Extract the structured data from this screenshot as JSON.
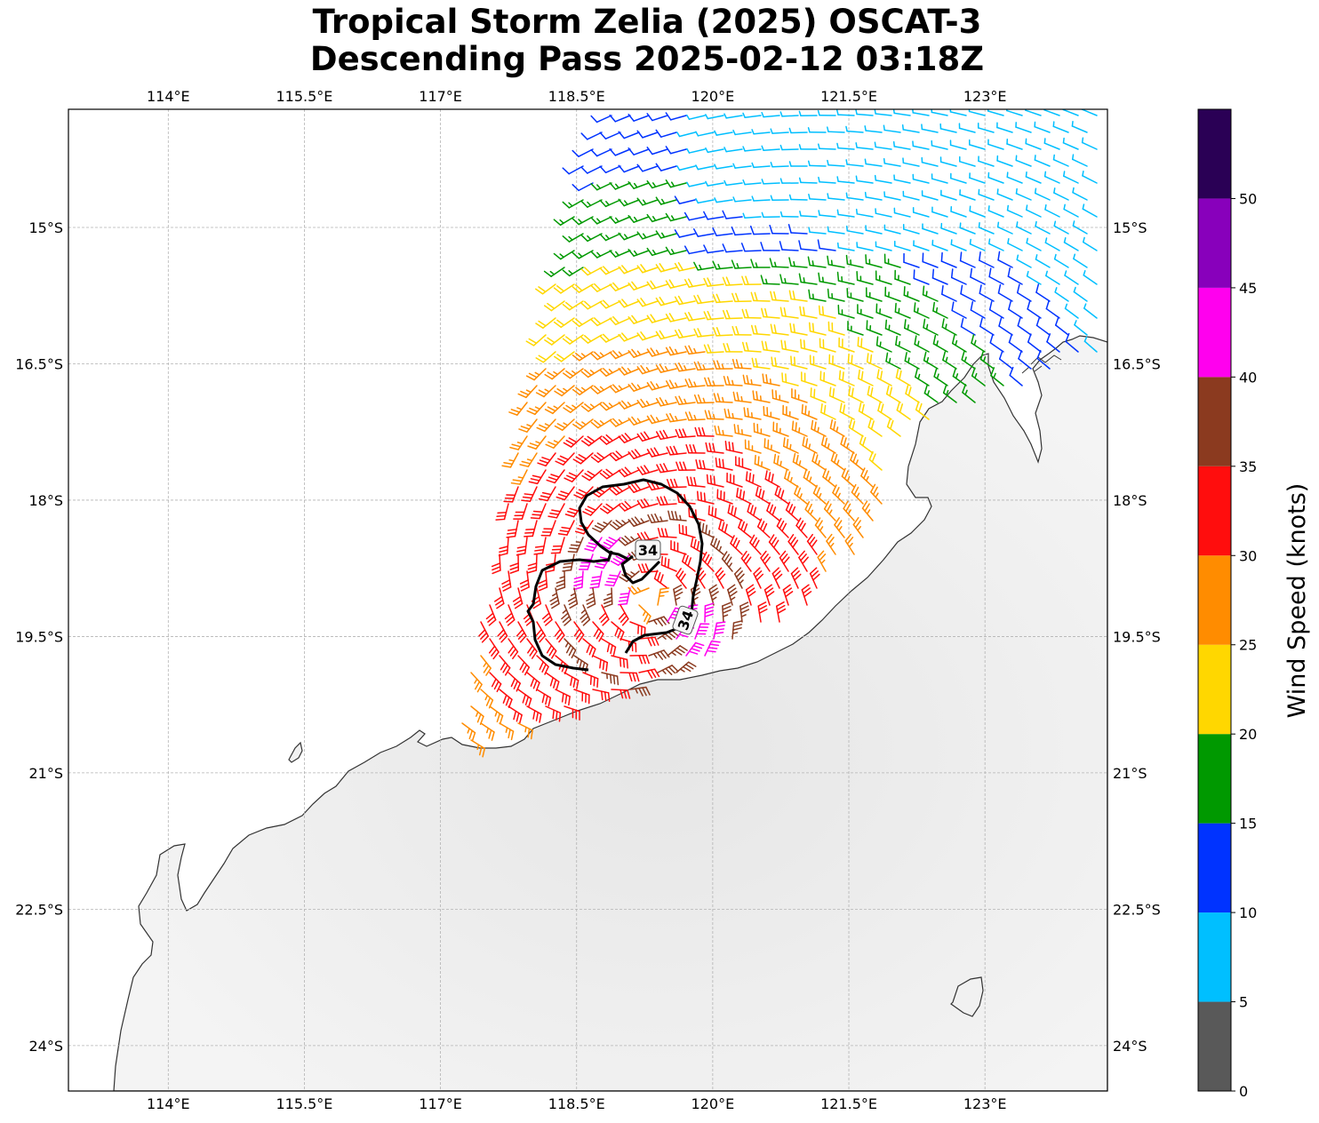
{
  "title": {
    "line1": "Tropical Storm Zelia (2025) OSCAT-3",
    "line2": "Descending Pass 2025-02-12 03:18Z"
  },
  "axes": {
    "lon_ticks": [
      "114°E",
      "115.5°E",
      "117°E",
      "118.5°E",
      "120°E",
      "121.5°E",
      "123°E"
    ],
    "lon_values": [
      114,
      115.5,
      117,
      118.5,
      120,
      121.5,
      123
    ],
    "lat_ticks": [
      "15°S",
      "16.5°S",
      "18°S",
      "19.5°S",
      "21°S",
      "22.5°S",
      "24°S"
    ],
    "lat_values": [
      -15,
      -16.5,
      -18,
      -19.5,
      -21,
      -22.5,
      -24
    ],
    "lon_range": [
      112.9,
      124.35
    ],
    "lat_range": [
      -24.5,
      -13.7
    ]
  },
  "contour": {
    "value_label_1": "34",
    "value_label_2": "34",
    "level_knots": 34
  },
  "colorbar": {
    "label": "Wind Speed (knots)",
    "tick_labels": [
      "0",
      "5",
      "10",
      "15",
      "20",
      "25",
      "30",
      "35",
      "40",
      "45",
      "50"
    ],
    "bins": [
      {
        "min": 0,
        "max": 5,
        "color": "#595959"
      },
      {
        "min": 5,
        "max": 10,
        "color": "#00bfff"
      },
      {
        "min": 10,
        "max": 15,
        "color": "#0033ff"
      },
      {
        "min": 15,
        "max": 20,
        "color": "#009900"
      },
      {
        "min": 20,
        "max": 25,
        "color": "#ffd700"
      },
      {
        "min": 25,
        "max": 30,
        "color": "#ff8c00"
      },
      {
        "min": 30,
        "max": 35,
        "color": "#ff0d0d"
      },
      {
        "min": 35,
        "max": 40,
        "color": "#8b3a1f"
      },
      {
        "min": 40,
        "max": 45,
        "color": "#ff00ee"
      },
      {
        "min": 45,
        "max": 50,
        "color": "#8800bb"
      },
      {
        "min": 50,
        "max": 55,
        "color": "#2a0055"
      }
    ]
  },
  "storm_center": {
    "lon": 119.3,
    "lat": -19.1
  },
  "colors": {
    "land": "#f1f1f1",
    "ocean": "#ffffff",
    "coastline": "#333333",
    "grid": "#b3b3b3",
    "contour": "#000000"
  }
}
